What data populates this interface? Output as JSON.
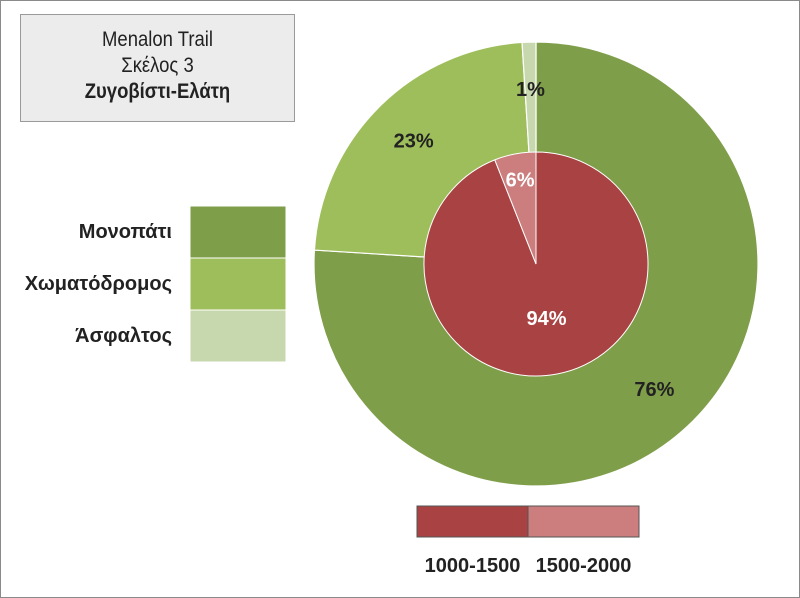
{
  "title": {
    "line1": "Menalon Trail",
    "line2": "Σκέλος 3",
    "line3": "Ζυγοβίστι-Ελάτη"
  },
  "chart_data": [
    {
      "type": "pie",
      "ring": "outer",
      "categories": [
        "Μονοπάτι",
        "Χωματόδρομος",
        "Άσφαλτος"
      ],
      "values": [
        76,
        23,
        1
      ],
      "labels": [
        "76%",
        "23%",
        "1%"
      ],
      "colors": [
        "#7f9e4a",
        "#9dbe5a",
        "#c8d8ae"
      ]
    },
    {
      "type": "pie",
      "ring": "inner",
      "categories": [
        "1000-1500",
        "1500-2000"
      ],
      "values": [
        94,
        6
      ],
      "labels": [
        "94%",
        "6%"
      ],
      "colors": [
        "#a94343",
        "#cc7d7d"
      ]
    }
  ],
  "legend_surface": {
    "position": "left",
    "items": [
      "Μονοπάτι",
      "Χωματόδρομος",
      "Άσφαλτος"
    ]
  },
  "legend_altitude": {
    "position": "bottom",
    "items": [
      "1000-1500",
      "1500-2000"
    ]
  }
}
